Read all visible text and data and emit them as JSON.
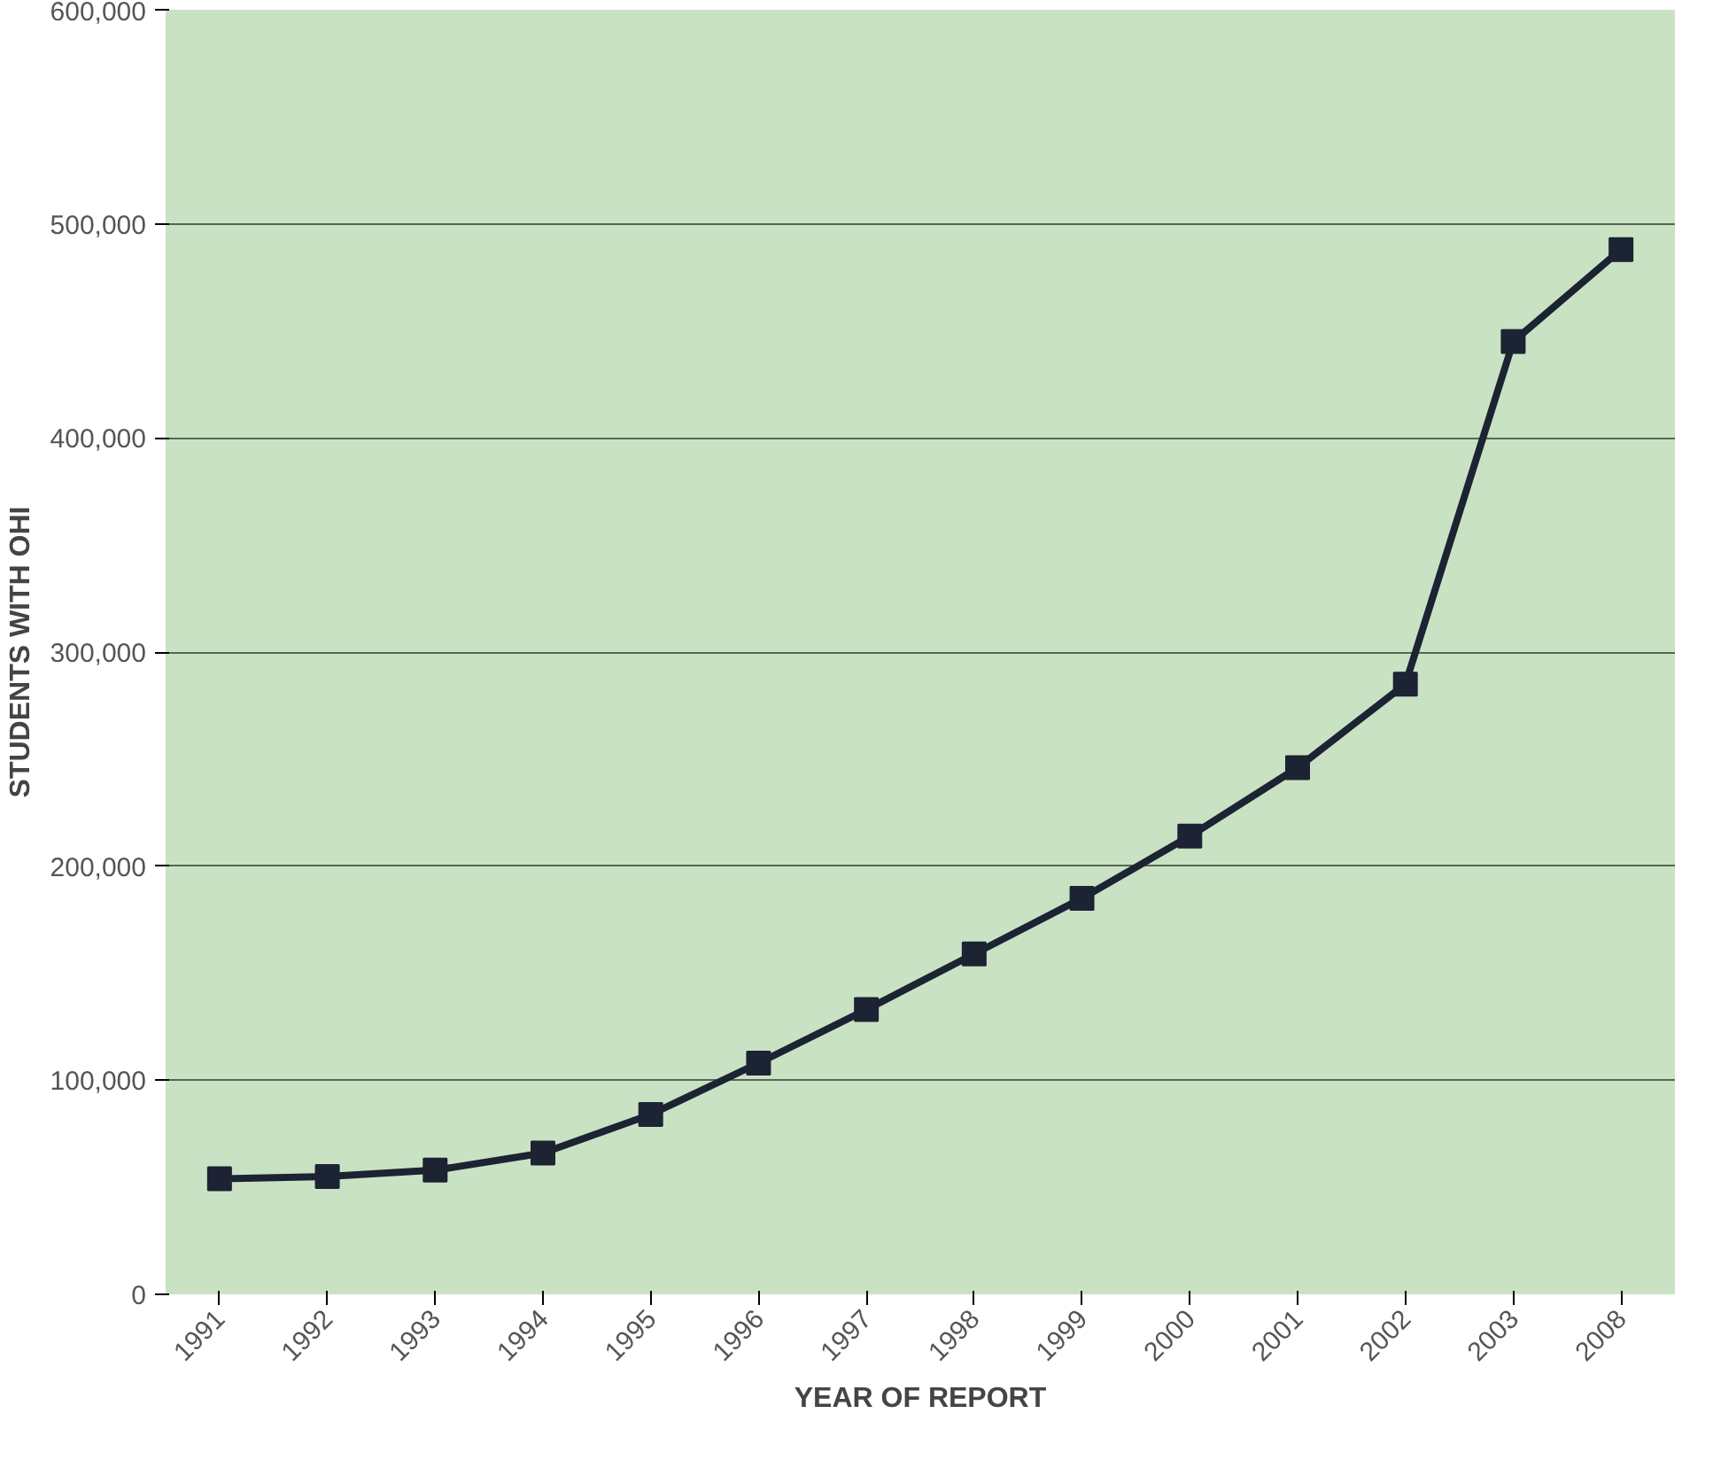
{
  "chart_data": {
    "type": "line",
    "xlabel": "YEAR OF REPORT",
    "ylabel": "STUDENTS WITH OHI",
    "categories": [
      "1991",
      "1992",
      "1993",
      "1994",
      "1995",
      "1996",
      "1997",
      "1998",
      "1999",
      "2000",
      "2001",
      "2002",
      "2003",
      "2008"
    ],
    "series": [
      {
        "color": "#1c2333",
        "values": [
          54000,
          55000,
          58000,
          66000,
          84000,
          108000,
          133000,
          159000,
          185000,
          214000,
          246000,
          285000,
          445000,
          488000
        ]
      }
    ],
    "ylim": [
      0,
      600000
    ],
    "yticks": [
      {
        "value": 0,
        "label": "0"
      },
      {
        "value": 100000,
        "label": "100,000"
      },
      {
        "value": 200000,
        "label": "200,000"
      },
      {
        "value": 300000,
        "label": "300,000"
      },
      {
        "value": 400000,
        "label": "400,000"
      },
      {
        "value": 500000,
        "label": "500,000"
      },
      {
        "value": 600000,
        "label": "600,000"
      }
    ],
    "grid": "y",
    "marker": "square",
    "line_style": "solid"
  }
}
